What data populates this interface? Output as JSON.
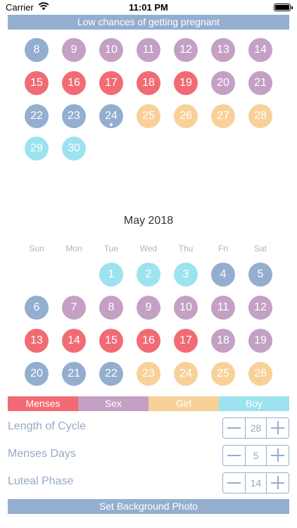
{
  "status_bar": {
    "carrier": "Carrier",
    "time": "11:01 PM"
  },
  "top_banner": {
    "text": "Low chances of getting pregnant"
  },
  "colors": {
    "blue": "#93aecf",
    "purple": "#c4a0c4",
    "red": "#f26b74",
    "orange": "#f8d199",
    "cyan": "#9ce3ef"
  },
  "april": {
    "rows": [
      [
        {
          "n": "8",
          "c": "blue"
        },
        {
          "n": "9",
          "c": "purple"
        },
        {
          "n": "10",
          "c": "purple"
        },
        {
          "n": "11",
          "c": "purple"
        },
        {
          "n": "12",
          "c": "purple"
        },
        {
          "n": "13",
          "c": "purple"
        },
        {
          "n": "14",
          "c": "purple"
        }
      ],
      [
        {
          "n": "15",
          "c": "red"
        },
        {
          "n": "16",
          "c": "red"
        },
        {
          "n": "17",
          "c": "red"
        },
        {
          "n": "18",
          "c": "red"
        },
        {
          "n": "19",
          "c": "red"
        },
        {
          "n": "20",
          "c": "purple"
        },
        {
          "n": "21",
          "c": "purple"
        }
      ],
      [
        {
          "n": "22",
          "c": "blue"
        },
        {
          "n": "23",
          "c": "blue"
        },
        {
          "n": "24",
          "c": "blue",
          "today": true
        },
        {
          "n": "25",
          "c": "orange"
        },
        {
          "n": "26",
          "c": "orange"
        },
        {
          "n": "27",
          "c": "orange"
        },
        {
          "n": "28",
          "c": "orange"
        }
      ],
      [
        {
          "n": "29",
          "c": "cyan"
        },
        {
          "n": "30",
          "c": "cyan"
        }
      ]
    ]
  },
  "may": {
    "title": "May 2018",
    "weekdays": [
      "Sun",
      "Mon",
      "Tue",
      "Wed",
      "Thu",
      "Fri",
      "Sat"
    ],
    "rows": [
      [
        null,
        null,
        {
          "n": "1",
          "c": "cyan"
        },
        {
          "n": "2",
          "c": "cyan"
        },
        {
          "n": "3",
          "c": "cyan"
        },
        {
          "n": "4",
          "c": "blue"
        },
        {
          "n": "5",
          "c": "blue"
        }
      ],
      [
        {
          "n": "6",
          "c": "blue"
        },
        {
          "n": "7",
          "c": "purple"
        },
        {
          "n": "8",
          "c": "purple"
        },
        {
          "n": "9",
          "c": "purple"
        },
        {
          "n": "10",
          "c": "purple"
        },
        {
          "n": "11",
          "c": "purple"
        },
        {
          "n": "12",
          "c": "purple"
        }
      ],
      [
        {
          "n": "13",
          "c": "red"
        },
        {
          "n": "14",
          "c": "red"
        },
        {
          "n": "15",
          "c": "red"
        },
        {
          "n": "16",
          "c": "red"
        },
        {
          "n": "17",
          "c": "red"
        },
        {
          "n": "18",
          "c": "purple"
        },
        {
          "n": "19",
          "c": "purple"
        }
      ],
      [
        {
          "n": "20",
          "c": "blue"
        },
        {
          "n": "21",
          "c": "blue"
        },
        {
          "n": "22",
          "c": "blue"
        },
        {
          "n": "23",
          "c": "orange"
        },
        {
          "n": "24",
          "c": "orange"
        },
        {
          "n": "25",
          "c": "orange"
        },
        {
          "n": "26",
          "c": "orange"
        }
      ]
    ]
  },
  "legend": [
    {
      "label": "Menses",
      "color": "#f26b74"
    },
    {
      "label": "Sex",
      "color": "#c4a0c4"
    },
    {
      "label": "Girl",
      "color": "#f8d199"
    },
    {
      "label": "Boy",
      "color": "#9ce3ef"
    }
  ],
  "settings": {
    "cycle": {
      "label": "Length of Cycle",
      "value": "28"
    },
    "menses": {
      "label": "Menses Days",
      "value": "5"
    },
    "luteal": {
      "label": "Luteal Phase",
      "value": "14"
    }
  },
  "bottom_button": {
    "label": "Set Background Photo"
  }
}
